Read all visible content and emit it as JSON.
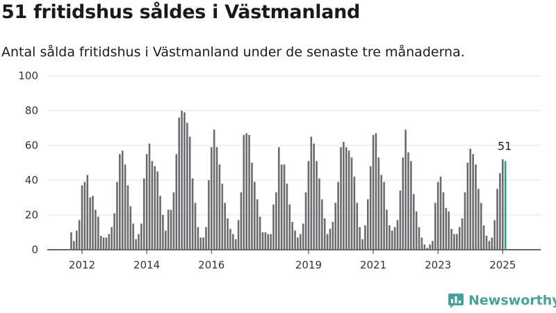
{
  "header": {
    "title": "51 fritidshus såldes i Västmanland",
    "subtitle": "Antal sålda fritidshus i Västmanland under de senaste tre månaderna."
  },
  "brand": {
    "name": "Newsworthy",
    "icon": "newsworthy-logo-icon",
    "color": "#4aa19a"
  },
  "chart_data": {
    "type": "bar",
    "title": "51 fritidshus såldes i Västmanland",
    "subtitle": "Antal sålda fritidshus i Västmanland under de senaste tre månaderna.",
    "x_start": "2011-09",
    "x_frequency": "monthly",
    "values": [
      10,
      5,
      11,
      17,
      37,
      39,
      43,
      30,
      31,
      23,
      19,
      8,
      7,
      7,
      9,
      13,
      21,
      39,
      55,
      57,
      49,
      37,
      25,
      15,
      6,
      9,
      15,
      41,
      55,
      61,
      51,
      48,
      45,
      31,
      20,
      11,
      23,
      23,
      33,
      55,
      76,
      80,
      79,
      73,
      65,
      41,
      27,
      13,
      7,
      7,
      13,
      40,
      59,
      69,
      59,
      49,
      38,
      27,
      18,
      12,
      9,
      6,
      17,
      33,
      66,
      67,
      66,
      50,
      39,
      29,
      19,
      10,
      10,
      9,
      9,
      26,
      33,
      59,
      49,
      49,
      38,
      26,
      16,
      11,
      7,
      9,
      15,
      33,
      51,
      65,
      61,
      51,
      41,
      29,
      18,
      9,
      12,
      16,
      27,
      39,
      59,
      62,
      59,
      57,
      53,
      42,
      27,
      13,
      6,
      14,
      29,
      48,
      66,
      67,
      53,
      43,
      39,
      23,
      14,
      11,
      13,
      17,
      34,
      53,
      69,
      56,
      51,
      32,
      22,
      13,
      7,
      3,
      1,
      3,
      5,
      27,
      39,
      42,
      33,
      24,
      22,
      12,
      9,
      9,
      13,
      18,
      33,
      50,
      58,
      55,
      49,
      35,
      27,
      14,
      8,
      5,
      7,
      17,
      35,
      44,
      52,
      51
    ],
    "highlight_last": true,
    "highlight_color": "#2a9d8f",
    "bar_color": "#6b6b6e",
    "annotation": "51",
    "x_tick_labels": [
      "2012",
      "2014",
      "2016",
      "2019",
      "2021",
      "2023",
      "2025"
    ],
    "x_tick_dates": [
      "2012-01",
      "2014-01",
      "2016-01",
      "2019-01",
      "2021-01",
      "2023-01",
      "2025-01"
    ],
    "y_ticks": [
      0,
      20,
      40,
      60,
      80,
      100
    ],
    "ylim": [
      0,
      100
    ],
    "grid": true,
    "legend": "none"
  }
}
